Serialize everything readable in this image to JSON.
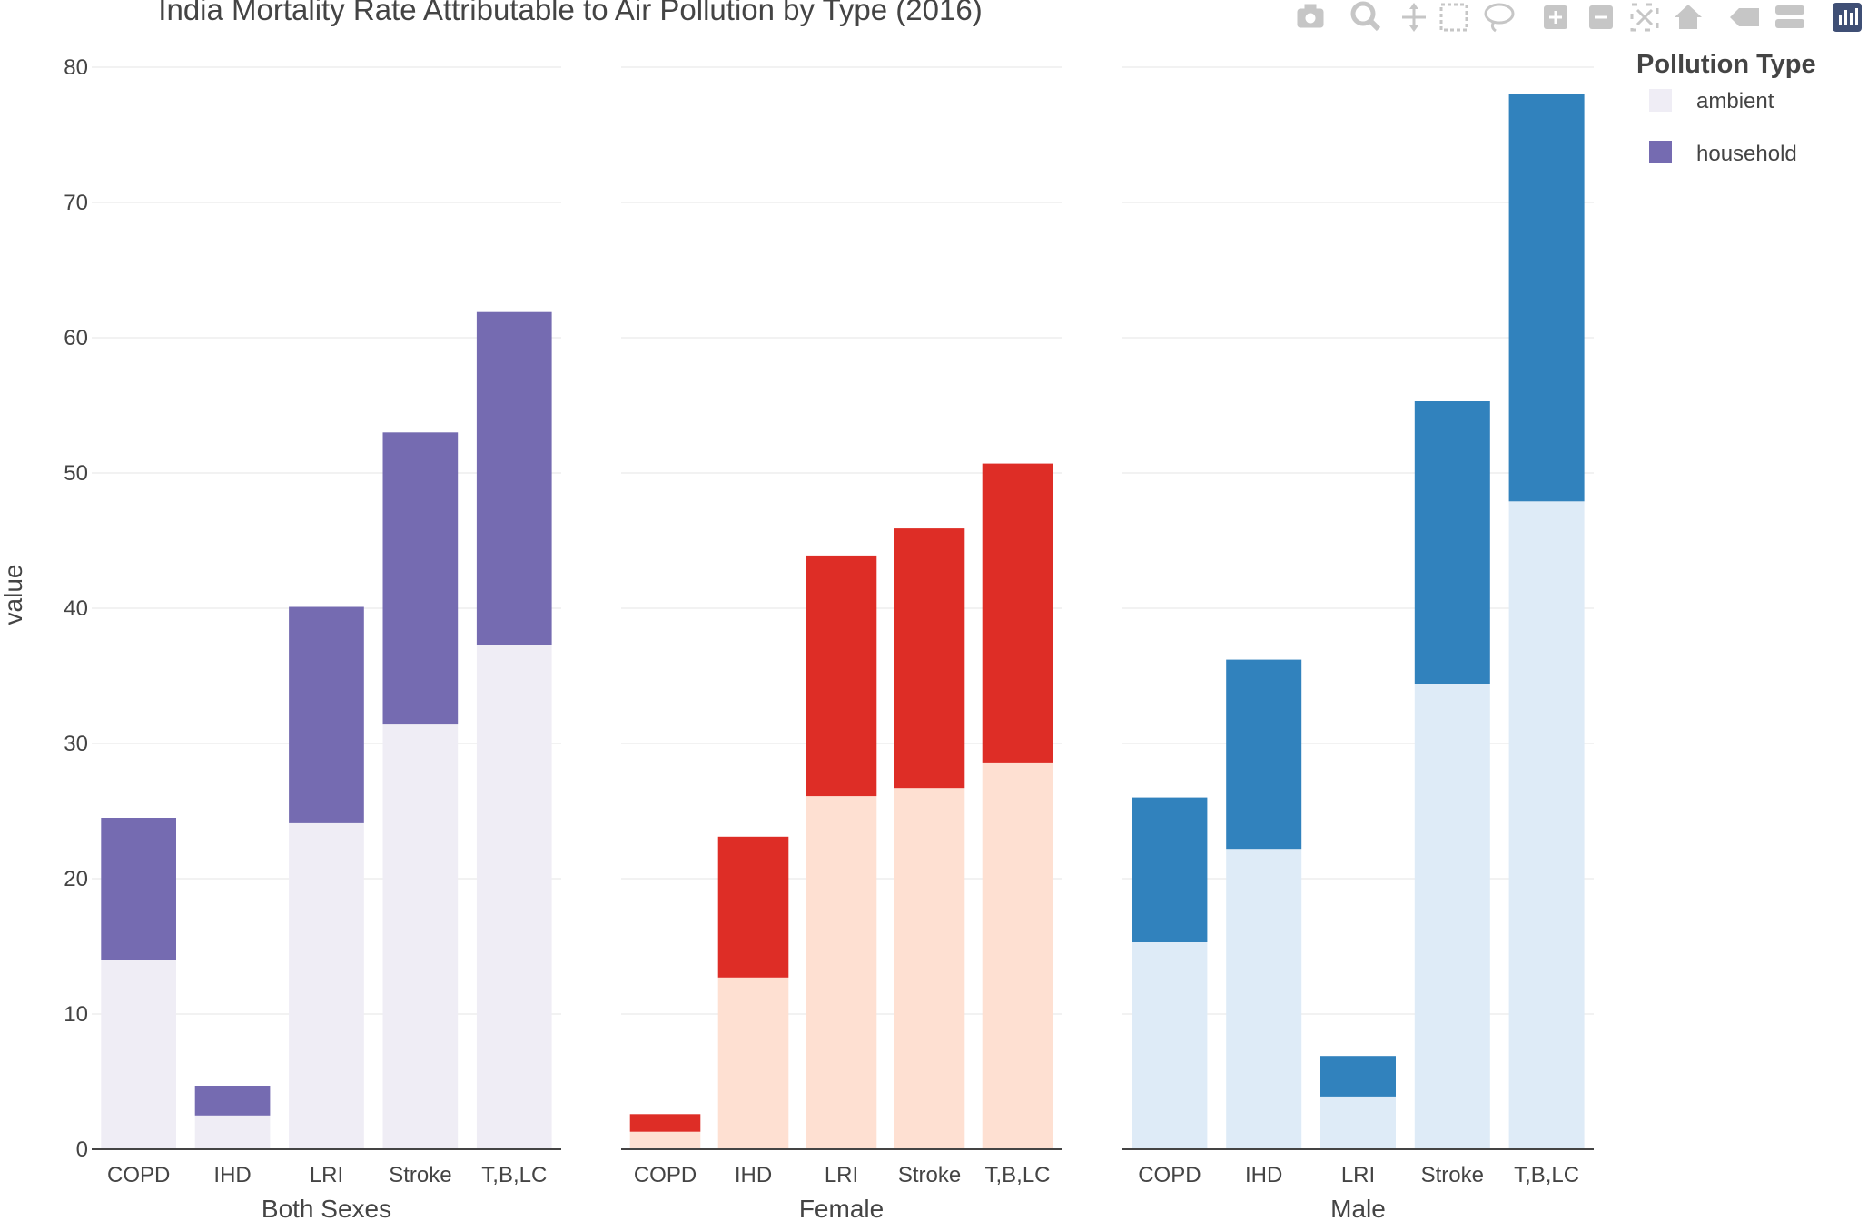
{
  "chart_data": {
    "type": "bar",
    "barmode": "stack",
    "title": "India Mortality Rate Attributable to Air Pollution by Type (2016)",
    "ylabel": "value",
    "ylim": [
      0,
      80
    ],
    "yticks": [
      0,
      10,
      20,
      30,
      40,
      50,
      60,
      70,
      80
    ],
    "grid": true,
    "legend": {
      "title": "Pollution Type",
      "placement": "top-right",
      "entries": [
        {
          "name": "ambient",
          "color": "#efedf5"
        },
        {
          "name": "household",
          "color": "#756bb1"
        }
      ]
    },
    "categories": [
      "COPD",
      "IHD",
      "LRI",
      "Stroke",
      "T,B,LC"
    ],
    "panels": [
      {
        "label": "Both Sexes",
        "series": [
          {
            "name": "ambient",
            "color": "#efedf5",
            "values": [
              14.0,
              2.5,
              24.1,
              31.4,
              37.3
            ]
          },
          {
            "name": "household",
            "color": "#756bb1",
            "values": [
              10.5,
              2.2,
              16.0,
              21.6,
              24.6
            ]
          }
        ]
      },
      {
        "label": "Female",
        "series": [
          {
            "name": "ambient",
            "color": "#fee0d2",
            "values": [
              1.3,
              12.7,
              26.1,
              26.7,
              28.6
            ]
          },
          {
            "name": "household",
            "color": "#de2d26",
            "values": [
              1.3,
              10.4,
              17.8,
              19.2,
              22.1
            ]
          }
        ]
      },
      {
        "label": "Male",
        "series": [
          {
            "name": "ambient",
            "color": "#deebf7",
            "values": [
              15.3,
              22.2,
              3.9,
              34.4,
              47.9
            ]
          },
          {
            "name": "household",
            "color": "#3182bd",
            "values": [
              10.7,
              14.0,
              3.0,
              20.9,
              30.1
            ]
          }
        ]
      }
    ]
  },
  "modebar": {
    "icons": [
      "camera-icon",
      "zoom-icon",
      "pan-icon",
      "box-select-icon",
      "lasso-icon",
      "zoom-in-icon",
      "zoom-out-icon",
      "autoscale-icon",
      "reset-axes-icon",
      "spike-lines-icon",
      "compare-hover-icon",
      "plotly-logo-icon"
    ]
  }
}
